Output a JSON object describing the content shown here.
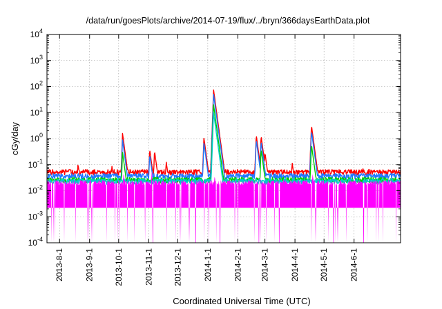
{
  "chart_data": {
    "type": "line",
    "title": "/data/run/goesPlots/archive/2014-07-19/flux/../bryn/366daysEarthData.plot",
    "xlabel": "Coordinated Universal Time (UTC)",
    "ylabel": "cGy/day",
    "yscale": "log",
    "ylim": [
      0.0001,
      10000
    ],
    "yticks": [
      {
        "value": 0.0001,
        "base": "10",
        "exp": "-4"
      },
      {
        "value": 0.001,
        "base": "10",
        "exp": "-3"
      },
      {
        "value": 0.01,
        "base": "10",
        "exp": "-2"
      },
      {
        "value": 0.1,
        "base": "10",
        "exp": "-1"
      },
      {
        "value": 1,
        "base": "10",
        "exp": "0"
      },
      {
        "value": 10,
        "base": "10",
        "exp": "1"
      },
      {
        "value": 100,
        "base": "10",
        "exp": "2"
      },
      {
        "value": 1000,
        "base": "10",
        "exp": "3"
      },
      {
        "value": 10000,
        "base": "10",
        "exp": "4"
      }
    ],
    "xlim": [
      "2013-07-19",
      "2014-07-19"
    ],
    "xticks": [
      "2013-8-1",
      "2013-9-1",
      "2013-10-1",
      "2013-11-1",
      "2013-12-1",
      "2014-1-1",
      "2014-2-1",
      "2014-3-1",
      "2014-4-1",
      "2014-5-1",
      "2014-6-1"
    ],
    "grid": true,
    "legend": "none",
    "series": [
      {
        "color": "#ff0000",
        "baseline": 0.05,
        "events": [
          {
            "date": "2013-08-20",
            "peak": 0.11
          },
          {
            "date": "2013-09-24",
            "peak": 0.09
          },
          {
            "date": "2013-10-05",
            "peak": 1.6
          },
          {
            "date": "2013-11-02",
            "peak": 0.4
          },
          {
            "date": "2013-11-07",
            "peak": 0.35
          },
          {
            "date": "2013-11-19",
            "peak": 0.14
          },
          {
            "date": "2013-12-28",
            "peak": 1.1
          },
          {
            "date": "2014-01-07",
            "peak": 75
          },
          {
            "date": "2014-02-20",
            "peak": 1.4
          },
          {
            "date": "2014-02-25",
            "peak": 1.3
          },
          {
            "date": "2014-03-01",
            "peak": 0.3
          },
          {
            "date": "2014-03-29",
            "peak": 0.13
          },
          {
            "date": "2014-04-18",
            "peak": 3.3
          },
          {
            "date": "2014-05-10",
            "peak": 0.07
          },
          {
            "date": "2014-06-10",
            "peak": 0.08
          }
        ]
      },
      {
        "color": "#1f77ff",
        "baseline": 0.035,
        "events": [
          {
            "date": "2013-10-05",
            "peak": 0.9
          },
          {
            "date": "2013-11-02",
            "peak": 0.25
          },
          {
            "date": "2013-12-28",
            "peak": 0.7
          },
          {
            "date": "2014-01-07",
            "peak": 50
          },
          {
            "date": "2014-02-20",
            "peak": 0.9
          },
          {
            "date": "2014-02-25",
            "peak": 0.8
          },
          {
            "date": "2014-04-18",
            "peak": 2.0
          }
        ]
      },
      {
        "color": "#00cc00",
        "baseline": 0.025,
        "events": [
          {
            "date": "2013-10-05",
            "peak": 0.3
          },
          {
            "date": "2014-01-07",
            "peak": 20
          },
          {
            "date": "2014-02-25",
            "peak": 0.4
          },
          {
            "date": "2014-04-18",
            "peak": 0.6
          }
        ]
      },
      {
        "color": "#00cccc",
        "baseline": 0.022,
        "events": [
          {
            "date": "2014-01-07",
            "peak": 10
          }
        ]
      },
      {
        "color": "#ff00ff",
        "baseline": 0.02,
        "floor": 0.0022,
        "dropout_floor": 0.0001,
        "events": [
          {
            "date": "2013-10-06",
            "peak": 0.05
          },
          {
            "date": "2013-11-04",
            "peak": 0.06
          },
          {
            "date": "2014-01-08",
            "peak": 0.04
          },
          {
            "date": "2014-02-24",
            "peak": 0.04
          },
          {
            "date": "2014-04-19",
            "peak": 0.05
          }
        ]
      }
    ]
  }
}
